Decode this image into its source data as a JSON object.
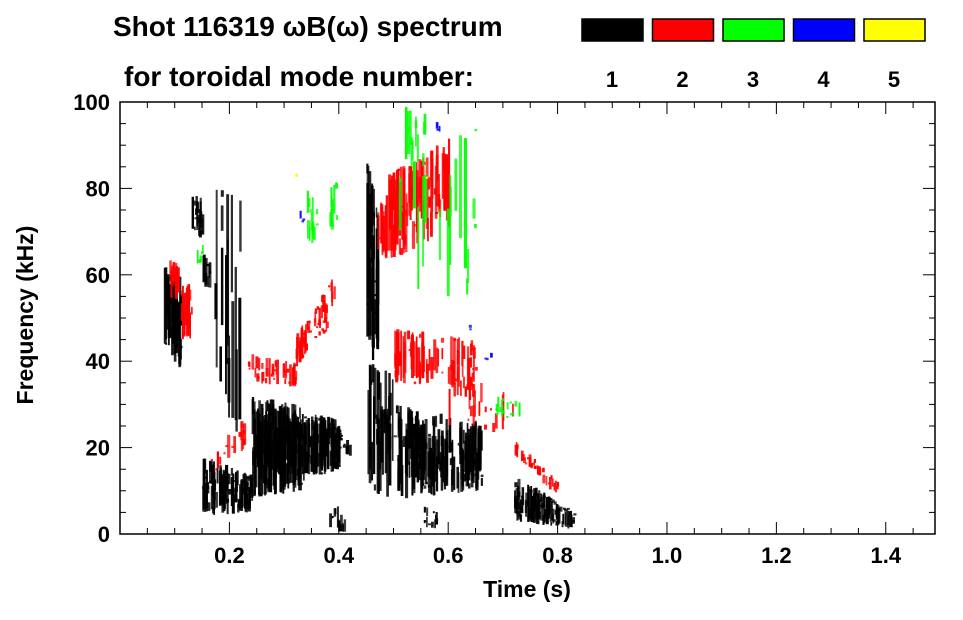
{
  "chart_data": {
    "type": "heatmap",
    "title": "Shot 116319 ωB(ω) spectrum",
    "subtitle": "for toroidal mode number:",
    "xlabel": "Time (s)",
    "ylabel": "Frequency (kHz)",
    "xlim": [
      0,
      1.49
    ],
    "ylim": [
      0,
      100
    ],
    "xticks": [
      0.2,
      0.4,
      0.6,
      0.8,
      1.0,
      1.2,
      1.4
    ],
    "xtick_labels": [
      "0.2",
      "0.4",
      "0.6",
      "0.8",
      "1.0",
      "1.2",
      "1.4"
    ],
    "yticks": [
      0,
      20,
      40,
      60,
      80,
      100
    ],
    "ytick_labels": [
      "0",
      "20",
      "40",
      "60",
      "80",
      "100"
    ],
    "legend_placement": "top-right",
    "legend": [
      {
        "mode": "1",
        "color": "#000000"
      },
      {
        "mode": "2",
        "color": "#ff0000"
      },
      {
        "mode": "3",
        "color": "#00ff00"
      },
      {
        "mode": "4",
        "color": "#0000ff"
      },
      {
        "mode": "5",
        "color": "#ffff00"
      }
    ],
    "regions": [
      {
        "mode": 1,
        "t": [
          0.08,
          0.11
        ],
        "f0": [
          42,
          62
        ],
        "f1": [
          38,
          60
        ],
        "n": 70
      },
      {
        "mode": 1,
        "t": [
          0.13,
          0.15
        ],
        "f0": [
          70,
          79
        ],
        "f1": [
          68,
          78
        ],
        "n": 20
      },
      {
        "mode": 1,
        "t": [
          0.15,
          0.165
        ],
        "f0": [
          57,
          65
        ],
        "f1": [
          57,
          64
        ],
        "n": 12
      },
      {
        "mode": 1,
        "t": [
          0.15,
          0.24
        ],
        "f0": [
          4,
          18
        ],
        "f1": [
          5,
          14
        ],
        "n": 110
      },
      {
        "mode": 1,
        "t": [
          0.17,
          0.22
        ],
        "f0": [
          22,
          82
        ],
        "f1": [
          22,
          80
        ],
        "n": 18
      },
      {
        "mode": 1,
        "t": [
          0.24,
          0.33
        ],
        "f0": [
          8,
          32
        ],
        "f1": [
          10,
          30
        ],
        "n": 160
      },
      {
        "mode": 1,
        "t": [
          0.33,
          0.4
        ],
        "f0": [
          12,
          28
        ],
        "f1": [
          15,
          27
        ],
        "n": 110
      },
      {
        "mode": 1,
        "t": [
          0.4,
          0.42
        ],
        "f0": [
          18,
          24
        ],
        "f1": [
          18,
          22
        ],
        "n": 10
      },
      {
        "mode": 1,
        "t": [
          0.45,
          0.47
        ],
        "f0": [
          40,
          88
        ],
        "f1": [
          40,
          75
        ],
        "n": 40
      },
      {
        "mode": 1,
        "t": [
          0.45,
          0.5
        ],
        "f0": [
          10,
          40
        ],
        "f1": [
          8,
          38
        ],
        "n": 35
      },
      {
        "mode": 1,
        "t": [
          0.5,
          0.66
        ],
        "f0": [
          8,
          30
        ],
        "f1": [
          10,
          26
        ],
        "n": 180
      },
      {
        "mode": 1,
        "t": [
          0.72,
          0.83
        ],
        "f0": [
          3,
          14
        ],
        "f1": [
          1,
          5
        ],
        "n": 110
      },
      {
        "mode": 1,
        "t": [
          0.38,
          0.41
        ],
        "f0": [
          0,
          8
        ],
        "f1": [
          0,
          6
        ],
        "n": 12
      },
      {
        "mode": 1,
        "t": [
          0.55,
          0.58
        ],
        "f0": [
          1,
          7
        ],
        "f1": [
          1,
          5
        ],
        "n": 12
      },
      {
        "mode": 2,
        "t": [
          0.09,
          0.105
        ],
        "f0": [
          55,
          65
        ],
        "f1": [
          52,
          62
        ],
        "n": 15
      },
      {
        "mode": 2,
        "t": [
          0.11,
          0.13
        ],
        "f0": [
          45,
          60
        ],
        "f1": [
          45,
          58
        ],
        "n": 18
      },
      {
        "mode": 2,
        "t": [
          0.155,
          0.23
        ],
        "f0": [
          13,
          17
        ],
        "f1": [
          20,
          28
        ],
        "n": 18
      },
      {
        "mode": 2,
        "t": [
          0.23,
          0.32
        ],
        "f0": [
          35,
          42
        ],
        "f1": [
          34,
          40
        ],
        "n": 45
      },
      {
        "mode": 2,
        "t": [
          0.32,
          0.39
        ],
        "f0": [
          38,
          46
        ],
        "f1": [
          53,
          60
        ],
        "n": 45
      },
      {
        "mode": 2,
        "t": [
          0.33,
          0.38
        ],
        "f0": [
          43,
          47
        ],
        "f1": [
          47,
          51
        ],
        "n": 20
      },
      {
        "mode": 2,
        "t": [
          0.47,
          0.6
        ],
        "f0": [
          62,
          82
        ],
        "f1": [
          70,
          92
        ],
        "n": 110
      },
      {
        "mode": 2,
        "t": [
          0.5,
          0.65
        ],
        "f0": [
          35,
          48
        ],
        "f1": [
          33,
          45
        ],
        "n": 70
      },
      {
        "mode": 2,
        "t": [
          0.6,
          0.72
        ],
        "f0": [
          25,
          40
        ],
        "f1": [
          22,
          32
        ],
        "n": 25
      },
      {
        "mode": 2,
        "t": [
          0.72,
          0.8
        ],
        "f0": [
          18,
          22
        ],
        "f1": [
          8,
          12
        ],
        "n": 30
      },
      {
        "mode": 3,
        "t": [
          0.14,
          0.15
        ],
        "f0": [
          62,
          67
        ],
        "f1": [
          62,
          67
        ],
        "n": 5
      },
      {
        "mode": 3,
        "t": [
          0.34,
          0.36
        ],
        "f0": [
          68,
          80
        ],
        "f1": [
          66,
          78
        ],
        "n": 14
      },
      {
        "mode": 3,
        "t": [
          0.38,
          0.4
        ],
        "f0": [
          70,
          82
        ],
        "f1": [
          70,
          82
        ],
        "n": 10
      },
      {
        "mode": 3,
        "t": [
          0.52,
          0.56
        ],
        "f0": [
          85,
          100
        ],
        "f1": [
          82,
          98
        ],
        "n": 14
      },
      {
        "mode": 3,
        "t": [
          0.5,
          0.66
        ],
        "f0": [
          55,
          95
        ],
        "f1": [
          55,
          95
        ],
        "n": 18
      },
      {
        "mode": 3,
        "t": [
          0.68,
          0.73
        ],
        "f0": [
          27,
          32
        ],
        "f1": [
          27,
          31
        ],
        "n": 18
      },
      {
        "mode": 4,
        "t": [
          0.325,
          0.335
        ],
        "f0": [
          72,
          76
        ],
        "f1": [
          72,
          76
        ],
        "n": 3
      },
      {
        "mode": 4,
        "t": [
          0.575,
          0.585
        ],
        "f0": [
          93,
          97
        ],
        "f1": [
          93,
          97
        ],
        "n": 3
      },
      {
        "mode": 4,
        "t": [
          0.635,
          0.645
        ],
        "f0": [
          47,
          49
        ],
        "f1": [
          47,
          49
        ],
        "n": 2
      },
      {
        "mode": 4,
        "t": [
          0.66,
          0.68
        ],
        "f0": [
          40,
          42
        ],
        "f1": [
          40,
          42
        ],
        "n": 3
      },
      {
        "mode": 5,
        "t": [
          0.318,
          0.322
        ],
        "f0": [
          82,
          84
        ],
        "f1": [
          82,
          84
        ],
        "n": 1
      },
      {
        "mode": 5,
        "t": [
          0.555,
          0.56
        ],
        "f0": [
          81,
          83
        ],
        "f1": [
          81,
          83
        ],
        "n": 1
      }
    ]
  }
}
